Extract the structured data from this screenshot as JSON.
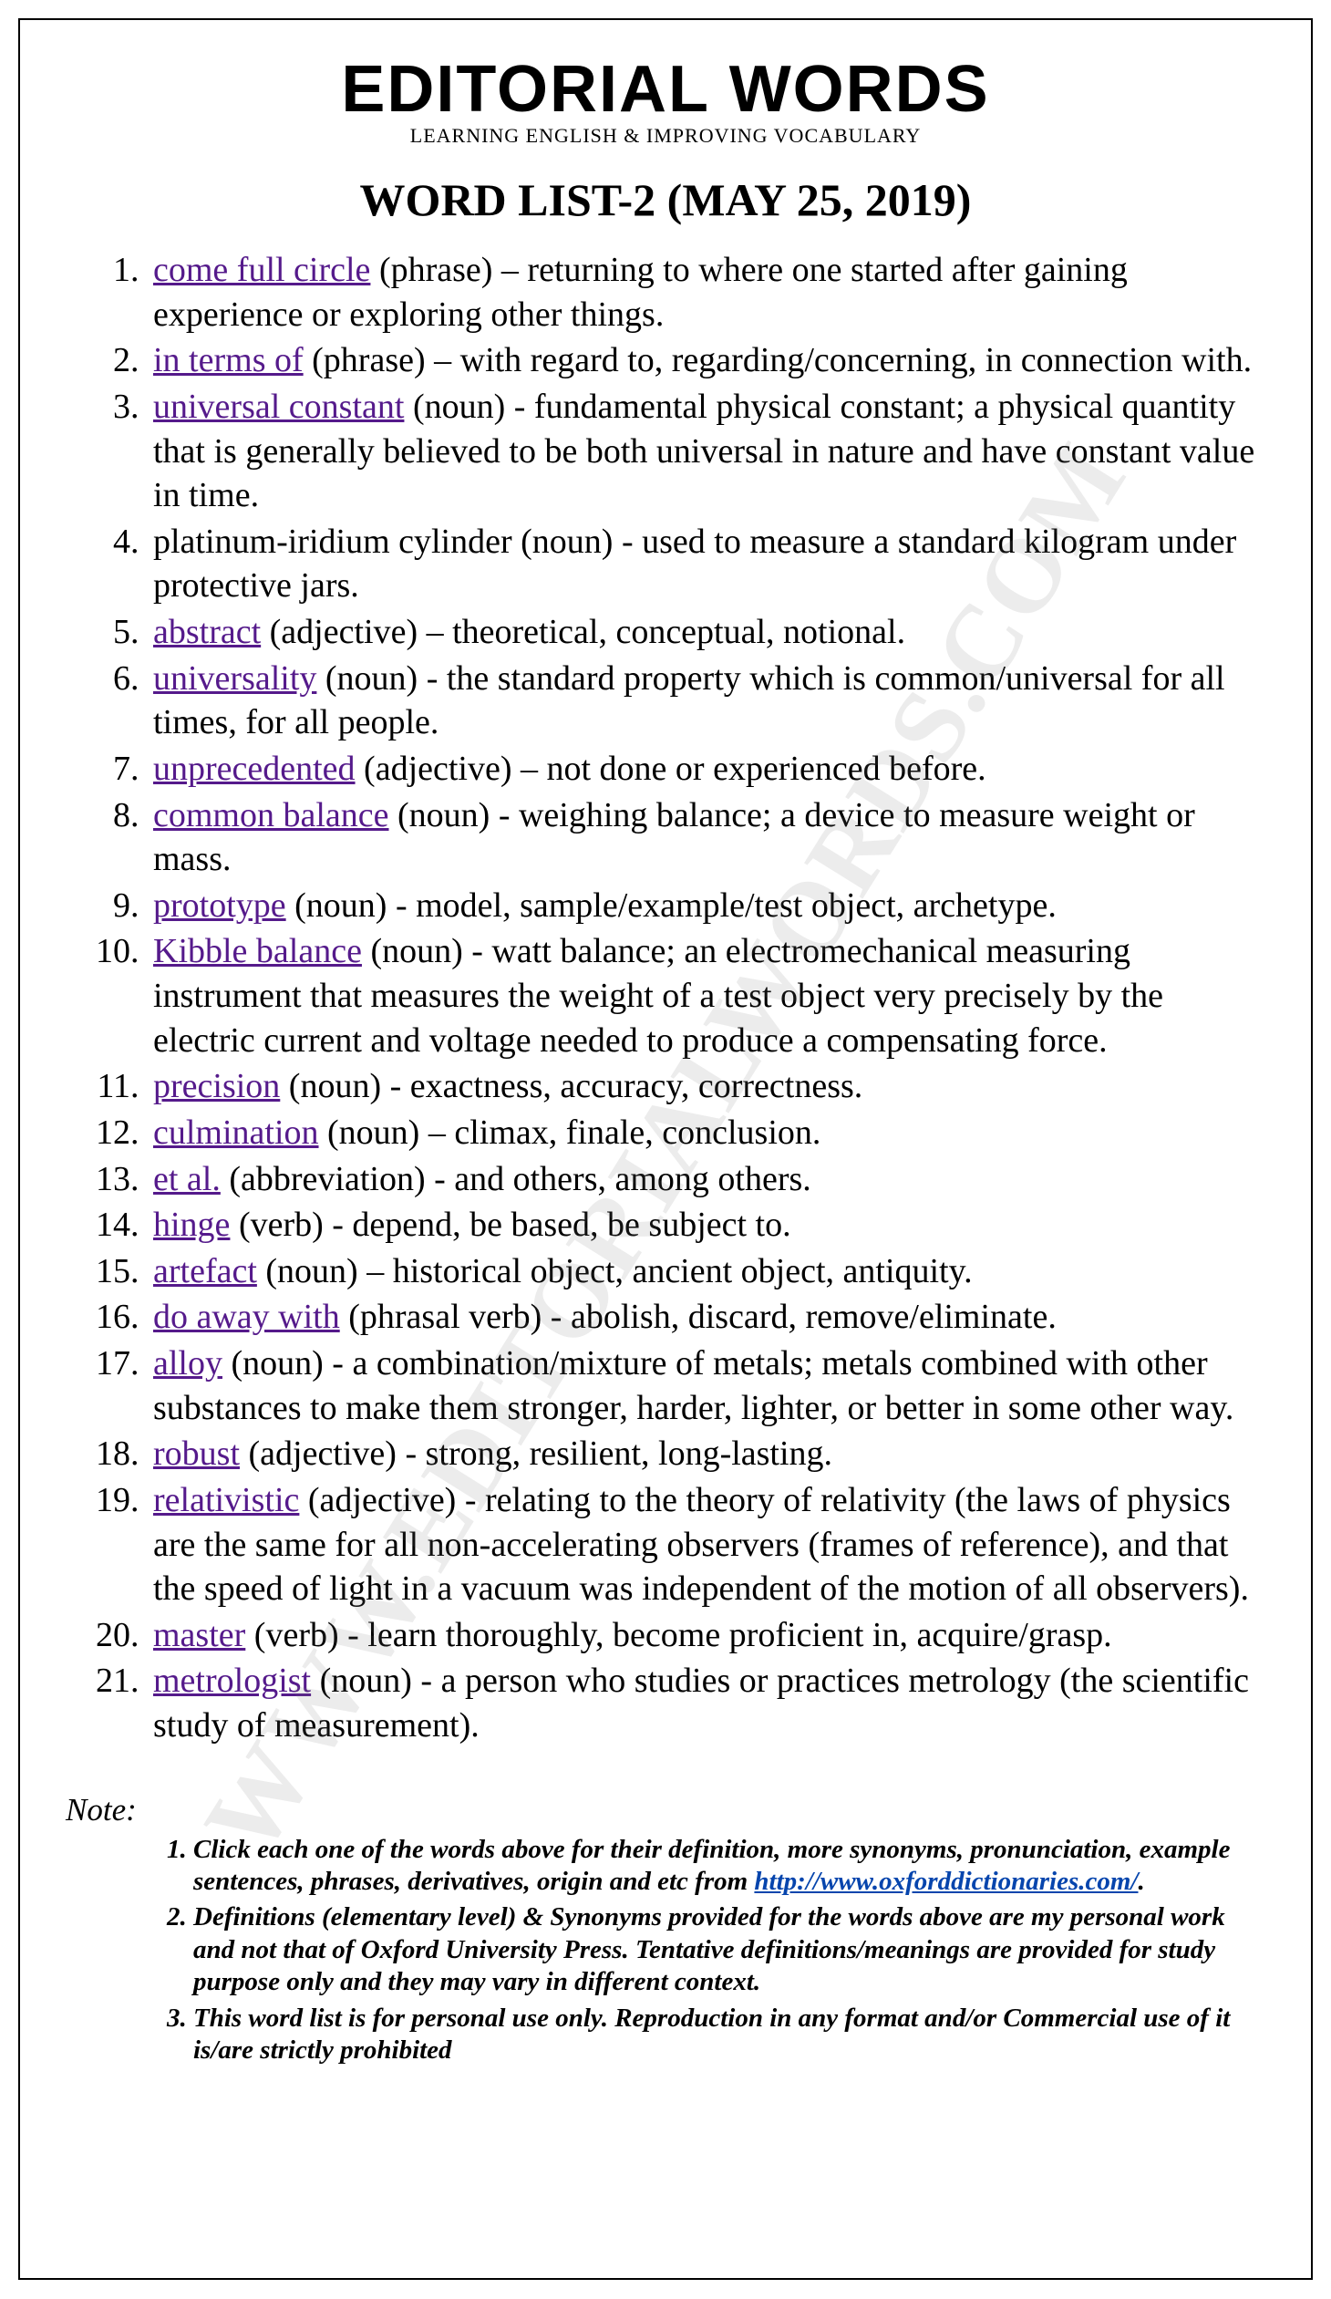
{
  "header": {
    "brand": "EDITORIAL WORDS",
    "tagline": "LEARNING ENGLISH & IMPROVING VOCABULARY",
    "list_title": "WORD LIST-2 (MAY 25, 2019)"
  },
  "watermark": "WWW.EDITORIALWORDS.COM",
  "link_colors": {
    "visited": "#551a8b",
    "link": "#0645ad"
  },
  "words": [
    {
      "term": "come full circle",
      "pos": "(phrase)",
      "sep": "–",
      "def": "returning to where one started after gaining experience or exploring other things.",
      "linked": true,
      "color": "visited"
    },
    {
      "term": "in terms of",
      "pos": "(phrase)",
      "sep": "–",
      "def": "with regard to, regarding/concerning, in connection with.",
      "linked": true,
      "color": "visited"
    },
    {
      "term": "universal constant",
      "pos": "(noun)",
      "sep": "-",
      "def": "fundamental physical constant; a physical quantity that is generally believed to be both universal in nature and have constant value in time.",
      "linked": true,
      "color": "visited"
    },
    {
      "term": "platinum-iridium cylinder",
      "pos": "(noun)",
      "sep": "-",
      "def": "used to measure a standard kilogram under protective jars.",
      "linked": false,
      "color": ""
    },
    {
      "term": "abstract",
      "pos": "(adjective)",
      "sep": "–",
      "def": "theoretical, conceptual, notional.",
      "linked": true,
      "color": "visited"
    },
    {
      "term": "universality",
      "pos": "(noun)",
      "sep": "-",
      "def": "the standard property which is common/universal for all times, for all people.",
      "linked": true,
      "color": "visited"
    },
    {
      "term": "unprecedented",
      "pos": "(adjective)",
      "sep": "–",
      "def": "not done or experienced before.",
      "linked": true,
      "color": "visited"
    },
    {
      "term": "common balance",
      "pos": "(noun)",
      "sep": "-",
      "def": "weighing balance; a device to measure weight or mass.",
      "linked": true,
      "color": "visited"
    },
    {
      "term": "prototype",
      "pos": "(noun)",
      "sep": "-",
      "def": "model, sample/example/test object, archetype.",
      "linked": true,
      "color": "visited"
    },
    {
      "term": "Kibble balance",
      "pos": "(noun)",
      "sep": "-",
      "def": "watt balance; an electromechanical measuring instrument that measures the weight of a test object very precisely by the electric current and voltage needed to produce a compensating force.",
      "linked": true,
      "color": "visited"
    },
    {
      "term": "precision",
      "pos": "(noun)",
      "sep": "-",
      "def": "exactness, accuracy, correctness.",
      "linked": true,
      "color": "visited"
    },
    {
      "term": "culmination",
      "pos": "(noun)",
      "sep": "–",
      "def": "climax, finale, conclusion.",
      "linked": true,
      "color": "visited"
    },
    {
      "term": "et al.",
      "pos": "(abbreviation)",
      "sep": "-",
      "def": "and others, among others.",
      "linked": true,
      "color": "visited"
    },
    {
      "term": "hinge",
      "pos": "(verb)",
      "sep": "-",
      "def": "depend, be based, be subject to.",
      "linked": true,
      "color": "visited"
    },
    {
      "term": "artefact",
      "pos": "(noun)",
      "sep": "–",
      "def": "historical object, ancient object, antiquity.",
      "linked": true,
      "color": "visited"
    },
    {
      "term": "do away with",
      "pos": "(phrasal verb)",
      "sep": "-",
      "def": "abolish, discard, remove/eliminate.",
      "linked": true,
      "color": "visited"
    },
    {
      "term": "alloy",
      "pos": "(noun)",
      "sep": "-",
      "def": "a combination/mixture of metals; metals combined with other substances to make them stronger, harder, lighter, or better in some other way.",
      "linked": true,
      "color": "visited"
    },
    {
      "term": "robust",
      "pos": "(adjective)",
      "sep": "-",
      "def": "strong, resilient, long-lasting.",
      "linked": true,
      "color": "visited"
    },
    {
      "term": "relativistic",
      "pos": "(adjective)",
      "sep": "-",
      "def": "relating to the theory of relativity (the laws of physics are the same for all non-accelerating observers (frames of reference), and that the speed of light in a vacuum was independent of the motion of all observers).",
      "linked": true,
      "color": "visited"
    },
    {
      "term": "master",
      "pos": "(verb)",
      "sep": "-",
      "def": "learn thoroughly, become proficient in, acquire/grasp.",
      "linked": true,
      "color": "visited"
    },
    {
      "term": "metrologist",
      "pos": "(noun)",
      "sep": "-",
      "def": "a person who studies or practices metrology (the scientific study of measurement).",
      "linked": true,
      "color": "visited"
    }
  ],
  "note_label": "Note:",
  "notes": [
    {
      "pre": "Click each one of the words above for their definition, more synonyms, pronunciation, example sentences, phrases, derivatives, origin and etc from ",
      "url": "http://www.oxforddictionaries.com/",
      "post": "."
    },
    {
      "pre": "Definitions (elementary level) & Synonyms provided for the words above are my personal work and not that of Oxford University Press. Tentative definitions/meanings are provided for study purpose only and they may vary in different context.",
      "url": "",
      "post": ""
    },
    {
      "pre": "This word list is for personal use only. Reproduction in any format and/or Commercial use of it is/are strictly prohibited",
      "url": "",
      "post": ""
    }
  ]
}
